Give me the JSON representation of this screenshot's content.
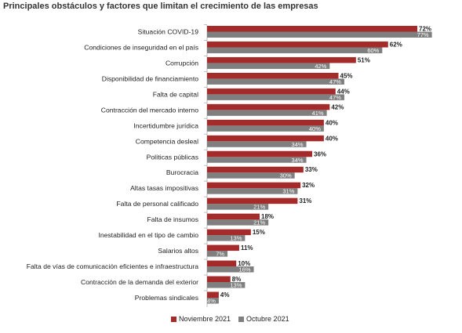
{
  "chart_data": {
    "type": "bar",
    "orientation": "horizontal",
    "title": "Principales obstáculos y factores que limitan el crecimiento de las empresas",
    "categories": [
      "Situación COVID-19",
      "Condiciones de inseguridad en el país",
      "Corrupción",
      "Disponibilidad de financiamiento",
      "Falta de capital",
      "Contracción del mercado interno",
      "Incertidumbre jurídica",
      "Competencia desleal",
      "Políticas públicas",
      "Burocracia",
      "Altas tasas impositivas",
      "Falta de personal calificado",
      "Falta de insumos",
      "Inestabilidad en el tipo de cambio",
      "Salarios altos",
      "Falta de vías de comunicación eficientes e infraestructura",
      "Contracción de la demanda del exterior",
      "Problemas sindicales"
    ],
    "series": [
      {
        "name": "Noviembre 2021",
        "color": "#a52a2a",
        "values": [
          72,
          62,
          51,
          45,
          44,
          42,
          40,
          40,
          36,
          33,
          32,
          31,
          18,
          15,
          11,
          10,
          8,
          4
        ],
        "labels": [
          "72%",
          "62%",
          "51%",
          "45%",
          "44%",
          "42%",
          "40%",
          "40%",
          "36%",
          "33%",
          "32%",
          "31%",
          "18%",
          "15%",
          "11%",
          "10%",
          "8%",
          "4%"
        ]
      },
      {
        "name": "Octubre 2021",
        "color": "#7f7f7f",
        "values": [
          77,
          60,
          42,
          47,
          47,
          41,
          40,
          34,
          34,
          30,
          31,
          21,
          21,
          13,
          7,
          16,
          13,
          4
        ],
        "labels": [
          "77%",
          "60%",
          "42%",
          "47%",
          "47%",
          "41%",
          "40%",
          "34%",
          "34%",
          "30%",
          "31%",
          "21%",
          "21%",
          "13%",
          "7%",
          "16%",
          "13%",
          "4%"
        ]
      }
    ],
    "xlim": [
      0,
      80
    ],
    "grid": false,
    "legend_position": "bottom"
  }
}
